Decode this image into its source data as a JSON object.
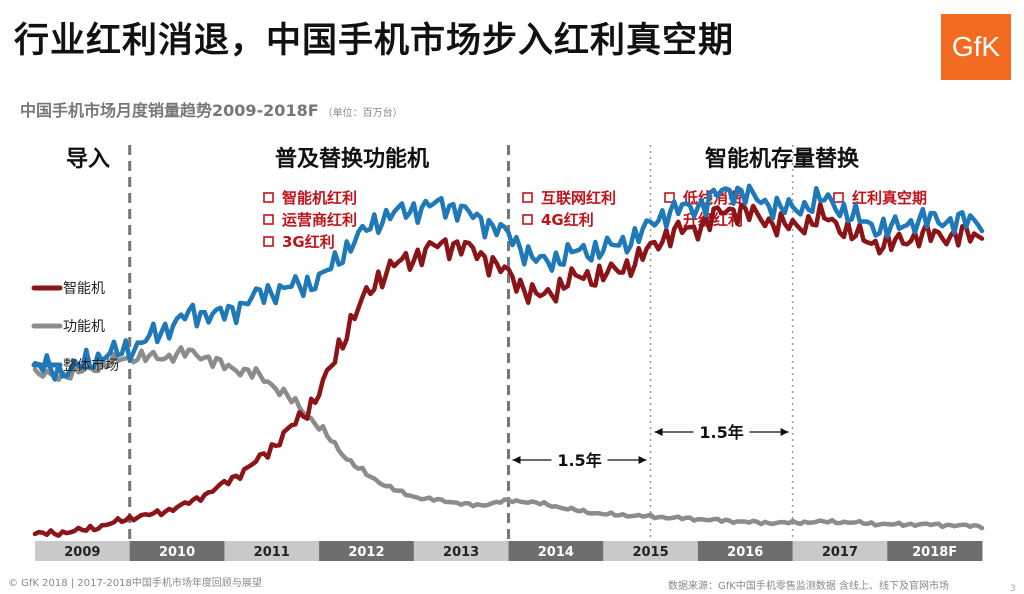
{
  "header": {
    "title": "行业红利消退，中国手机市场步入红利真空期",
    "subtitle": "中国手机市场月度销量趋势2009-2018F",
    "unit": "（单位：百万台）",
    "logo_text": "GfK"
  },
  "footer": {
    "left": "© GfK 2018 | 2017-2018中国手机市场年度回顾与展望",
    "right": "数据来源：GfK中国手机零售监测数据  含线上、线下及官网市场",
    "page_number": "3"
  },
  "colors": {
    "smart": "#8b1418",
    "feature": "#8c8c8c",
    "total": "#1f78b8",
    "accent_text": "#c0141c",
    "logo": "#f26b21"
  },
  "chart_data": {
    "type": "line",
    "title": "中国手机市场月度销量趋势2009-2018F",
    "ylabel": "单位：百万台",
    "xlabel": "",
    "x": [
      2009.0,
      2009.333,
      2009.667,
      2010.0,
      2010.333,
      2010.667,
      2011.0,
      2011.333,
      2011.667,
      2012.0,
      2012.333,
      2012.667,
      2013.0,
      2013.333,
      2013.667,
      2014.0,
      2014.333,
      2014.667,
      2015.0,
      2015.333,
      2015.667,
      2016.0,
      2016.333,
      2016.667,
      2017.0,
      2017.333,
      2017.667,
      2018.0,
      2018.333,
      2018.667,
      2019.0
    ],
    "x_range": [
      2009,
      2019
    ],
    "ylim": [
      0,
      46
    ],
    "categories": [
      "2009",
      "2010",
      "2011",
      "2012",
      "2013",
      "2014",
      "2015",
      "2016",
      "2017",
      "2018F"
    ],
    "series": [
      {
        "name": "智能机",
        "values": [
          0.7,
          0.9,
          1.5,
          2.5,
          3.2,
          4.5,
          6.5,
          9,
          12.5,
          17,
          25,
          30.5,
          32.5,
          34,
          33,
          30.5,
          28,
          30,
          30.5,
          32,
          35,
          36,
          38,
          37,
          36,
          37,
          35,
          34,
          35,
          35,
          35
        ]
      },
      {
        "name": "功能机",
        "values": [
          19,
          19,
          20,
          21,
          21,
          21.5,
          20,
          19,
          16.5,
          13,
          9,
          6.5,
          5,
          4.5,
          4,
          4.5,
          4.2,
          3.5,
          3,
          2.8,
          2.6,
          2.4,
          2.2,
          2,
          2,
          2.1,
          2,
          1.8,
          1.8,
          1.7,
          1.6
        ]
      },
      {
        "name": "整体市场",
        "values": [
          20,
          19.5,
          21,
          22,
          24,
          26,
          26,
          28,
          29,
          30,
          34,
          37,
          38,
          38.5,
          37,
          35,
          32,
          33,
          33.5,
          34.8,
          37.6,
          38.4,
          40.2,
          39,
          38,
          39.1,
          37,
          35.8,
          36.8,
          36.7,
          36.6
        ]
      }
    ],
    "phases": [
      {
        "label": "导入",
        "from": 2009.0,
        "to": 2010.0
      },
      {
        "label": "普及替换功能机",
        "from": 2010.0,
        "to": 2014.0
      },
      {
        "label": "智能机存量替换",
        "from": 2014.0,
        "to": 2019.0
      }
    ],
    "dividers": [
      {
        "year": 2010.0,
        "style": "dashed-bold"
      },
      {
        "year": 2014.0,
        "style": "dashed-bold"
      },
      {
        "year": 2015.5,
        "style": "dotted"
      },
      {
        "year": 2017.0,
        "style": "dotted"
      }
    ],
    "annotations": [
      {
        "items": [
          "智能机红利",
          "运营商红利",
          "3G红利"
        ]
      },
      {
        "items": [
          "互联网红利",
          "4G红利"
        ]
      },
      {
        "items": [
          "低线消费",
          "升级红利"
        ]
      },
      {
        "items": [
          "红利真空期"
        ]
      }
    ],
    "spans": [
      {
        "label": "1.5年",
        "from": 2014.0,
        "to": 2015.5
      },
      {
        "label": "1.5年",
        "from": 2015.5,
        "to": 2017.0
      }
    ],
    "legend": {
      "position": "left"
    }
  }
}
